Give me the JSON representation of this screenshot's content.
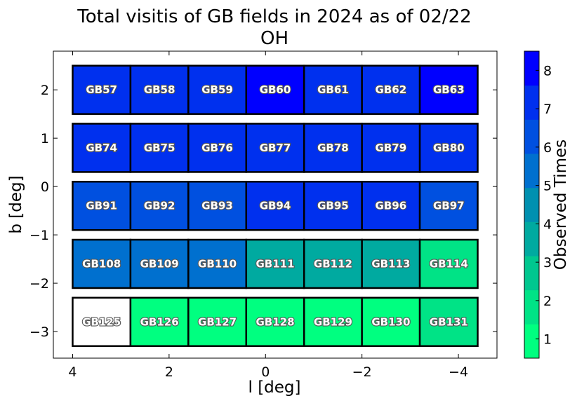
{
  "chart_data": {
    "type": "heatmap",
    "title_line1": "Total visitis of GB fields in 2024 as of 02/22",
    "title_line2": "OH",
    "xlabel": "l [deg]",
    "ylabel": "b [deg]",
    "colorbar_label": "Observed Times",
    "xlim": [
      4.4,
      -4.8
    ],
    "ylim": [
      -3.55,
      2.8
    ],
    "x_ticks": [
      4,
      2,
      0,
      -2,
      -4
    ],
    "x_tick_labels": [
      "4",
      "2",
      "0",
      "−2",
      "−4"
    ],
    "y_ticks": [
      2,
      1,
      0,
      -1,
      -2,
      -3
    ],
    "y_tick_labels": [
      "2",
      "1",
      "0",
      "−1",
      "−2",
      "−3"
    ],
    "colorbar_ticks": [
      1,
      2,
      3,
      4,
      5,
      6,
      7,
      8
    ],
    "colorbar_range": [
      0.5,
      8.5
    ],
    "colorbar_colors": [
      "#00ff80",
      "#00e386",
      "#00c78f",
      "#00aaa0",
      "#0090b0",
      "#0070cf",
      "#0050e0",
      "#0030ee",
      "#0000ff"
    ],
    "grid": false,
    "columns_l": [
      3.4,
      2.2,
      1.0,
      -0.2,
      -1.4,
      -2.6,
      -3.8
    ],
    "rows_b": [
      2.0,
      0.8,
      -0.4,
      -1.6,
      -2.8
    ],
    "cells": [
      [
        {
          "name": "GB57",
          "visits": 7
        },
        {
          "name": "GB58",
          "visits": 7
        },
        {
          "name": "GB59",
          "visits": 7
        },
        {
          "name": "GB60",
          "visits": 8
        },
        {
          "name": "GB61",
          "visits": 7
        },
        {
          "name": "GB62",
          "visits": 7
        },
        {
          "name": "GB63",
          "visits": 8
        }
      ],
      [
        {
          "name": "GB74",
          "visits": 7
        },
        {
          "name": "GB75",
          "visits": 7
        },
        {
          "name": "GB76",
          "visits": 7
        },
        {
          "name": "GB77",
          "visits": 7
        },
        {
          "name": "GB78",
          "visits": 7
        },
        {
          "name": "GB79",
          "visits": 7
        },
        {
          "name": "GB80",
          "visits": 7
        }
      ],
      [
        {
          "name": "GB91",
          "visits": 6
        },
        {
          "name": "GB92",
          "visits": 6
        },
        {
          "name": "GB93",
          "visits": 6
        },
        {
          "name": "GB94",
          "visits": 7
        },
        {
          "name": "GB95",
          "visits": 7
        },
        {
          "name": "GB96",
          "visits": 7
        },
        {
          "name": "GB97",
          "visits": 6
        }
      ],
      [
        {
          "name": "GB108",
          "visits": 5
        },
        {
          "name": "GB109",
          "visits": 5
        },
        {
          "name": "GB110",
          "visits": 5
        },
        {
          "name": "GB111",
          "visits": 4
        },
        {
          "name": "GB112",
          "visits": 4
        },
        {
          "name": "GB113",
          "visits": 4
        },
        {
          "name": "GB114",
          "visits": 2
        }
      ],
      [
        {
          "name": "GB125",
          "visits": 0
        },
        {
          "name": "GB126",
          "visits": 1
        },
        {
          "name": "GB127",
          "visits": 1
        },
        {
          "name": "GB128",
          "visits": 1
        },
        {
          "name": "GB129",
          "visits": 1
        },
        {
          "name": "GB130",
          "visits": 1
        },
        {
          "name": "GB131",
          "visits": 2
        }
      ]
    ]
  }
}
